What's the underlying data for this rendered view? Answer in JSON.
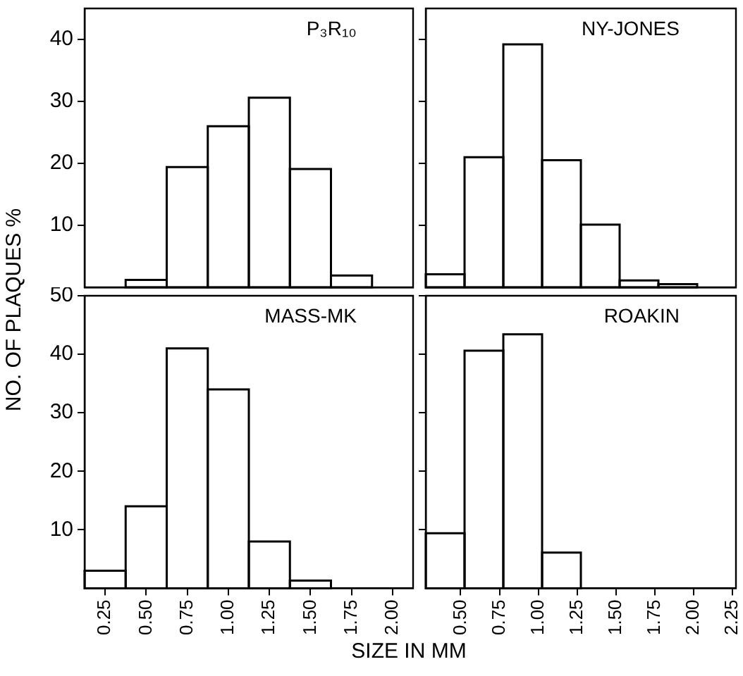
{
  "chart_data": [
    {
      "type": "histogram",
      "title": "P₃R₁₀",
      "ylabel": "NO. OF PLAQUES %",
      "bins": [
        0.375,
        0.625,
        0.875,
        1.125,
        1.375,
        1.625,
        1.875
      ],
      "values": [
        1.2,
        19.4,
        26,
        30.6,
        19.1,
        1.9
      ],
      "color": "#000000",
      "xlim": [
        0.125,
        2.125
      ],
      "ylim": [
        0,
        45
      ],
      "yticks": [
        10,
        20,
        30,
        40
      ],
      "tick_labels": "y",
      "grid": false,
      "legend": false
    },
    {
      "type": "histogram",
      "title": "NY-JONES",
      "bins": [
        0.275,
        0.525,
        0.775,
        1.025,
        1.275,
        1.525,
        1.775,
        2.025
      ],
      "values": [
        2.1,
        21,
        39.2,
        20.5,
        10.1,
        1.1,
        0.5
      ],
      "color": "#000000",
      "xlim": [
        0.275,
        2.275
      ],
      "ylim": [
        0,
        45
      ],
      "yticks": [
        10,
        20,
        30,
        40
      ],
      "tick_labels": false,
      "grid": false,
      "legend": false
    },
    {
      "type": "histogram",
      "title": "MASS-MK",
      "xlabel": "SIZE IN MM",
      "bins": [
        0.125,
        0.375,
        0.625,
        0.875,
        1.125,
        1.375,
        1.625
      ],
      "values": [
        3,
        14,
        41,
        34,
        8,
        1.3
      ],
      "color": "#000000",
      "xlim": [
        0.125,
        2.125
      ],
      "ylim": [
        0,
        50
      ],
      "xticks": [
        {
          "value": 0.25,
          "label": "0.25"
        },
        {
          "value": 0.5,
          "label": "0.50"
        },
        {
          "value": 0.75,
          "label": "0.75"
        },
        {
          "value": 1,
          "label": "1.00"
        },
        {
          "value": 1.25,
          "label": "1.25"
        },
        {
          "value": 1.5,
          "label": "1.50"
        },
        {
          "value": 1.75,
          "label": "1.75"
        },
        {
          "value": 2,
          "label": "2.00"
        }
      ],
      "yticks": [
        10,
        20,
        30,
        40,
        50
      ],
      "grid": false,
      "legend": false
    },
    {
      "type": "histogram",
      "title": "ROAKIN",
      "bins": [
        0.275,
        0.525,
        0.775,
        1.025,
        1.275
      ],
      "values": [
        9.4,
        40.6,
        43.4,
        6.1
      ],
      "color": "#000000",
      "xlim": [
        0.275,
        2.275
      ],
      "ylim": [
        0,
        50
      ],
      "xticks": [
        {
          "value": 0.5,
          "label": "0.50"
        },
        {
          "value": 0.75,
          "label": "0.75"
        },
        {
          "value": 1,
          "label": "1.00"
        },
        {
          "value": 1.25,
          "label": "1.25"
        },
        {
          "value": 1.5,
          "label": "1.50"
        },
        {
          "value": 1.75,
          "label": "1.75"
        },
        {
          "value": 2,
          "label": "2.00"
        },
        {
          "value": 2.25,
          "label": "2.25"
        }
      ],
      "yticks": [
        10,
        20,
        30,
        40,
        50
      ],
      "tick_labels": "x",
      "grid": false,
      "legend": false
    }
  ]
}
